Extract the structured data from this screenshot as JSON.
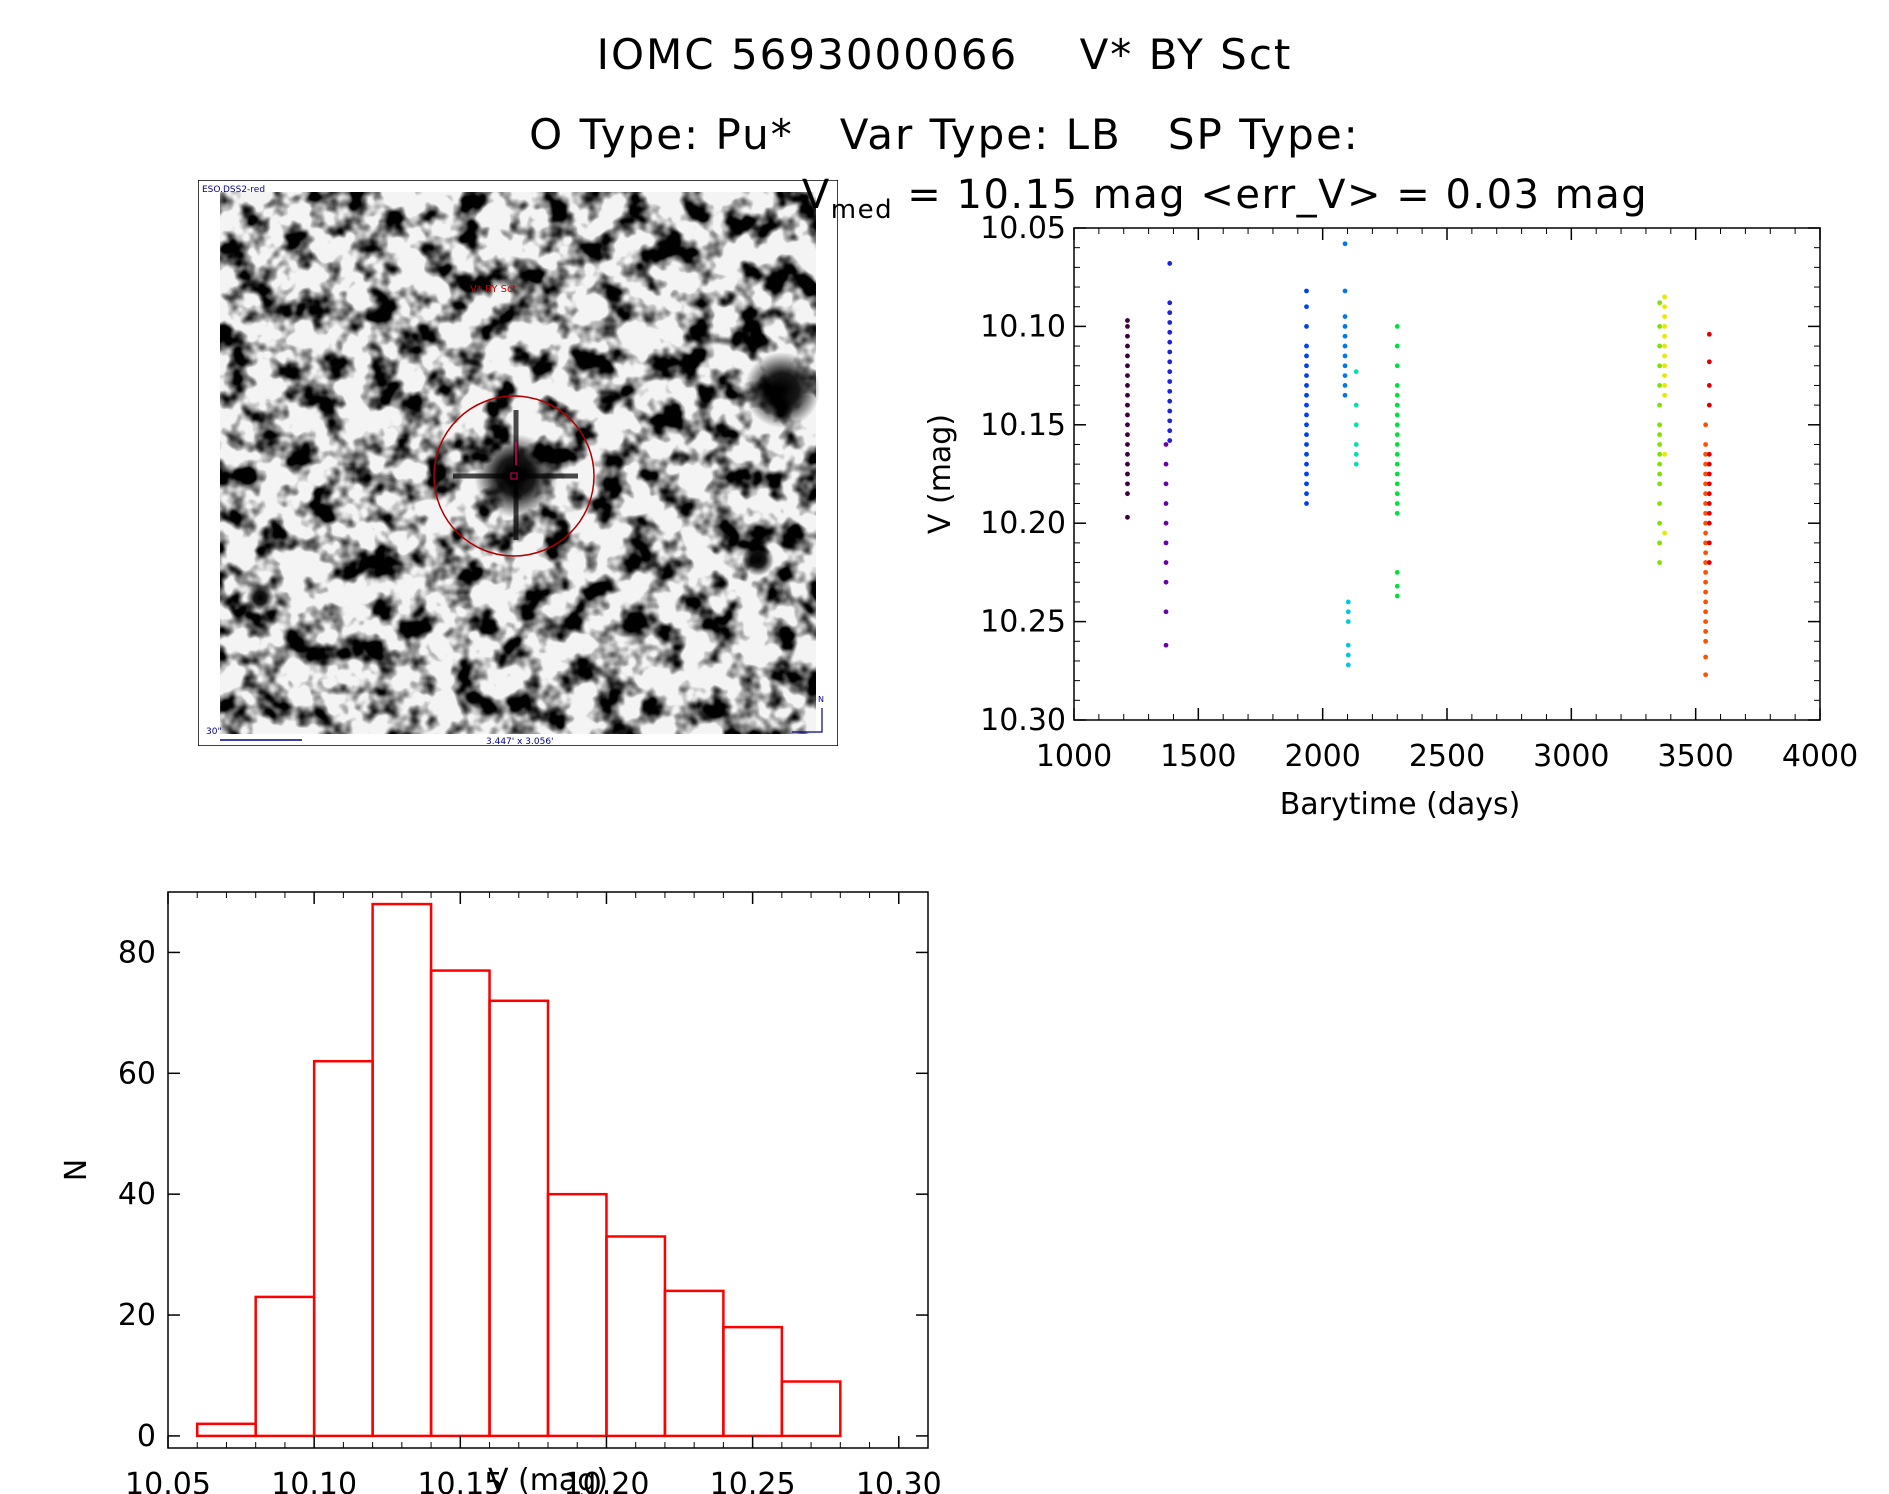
{
  "header": {
    "title_line1": "IOMC 5693000066    V* BY Sct",
    "title_line2": "O Type: Pu*   Var Type: LB   SP Type:"
  },
  "image_panel": {
    "survey_label": "ESO.DSS2-red",
    "target_label": "V* BY Sct",
    "scale_label": "30\"",
    "fov_label": "3.447' x 3.056'",
    "north_label": "N"
  },
  "chart_data": [
    {
      "type": "scatter",
      "title_prefix": "V",
      "title_sub": "med",
      "title_rest": " = 10.15 mag <err_V> = 0.03 mag",
      "xlabel": "Barytime (days)",
      "ylabel": "V (mag)",
      "xlim": [
        1000,
        4000
      ],
      "ylim": [
        10.05,
        10.3
      ],
      "y_inverted": true,
      "xticks": [
        1000,
        1500,
        2000,
        2500,
        3000,
        3500,
        4000
      ],
      "yticks": [
        "10.05",
        "10.10",
        "10.15",
        "10.20",
        "10.25",
        "10.30"
      ],
      "series": [
        {
          "color": "#3a003a",
          "x": [
            1215,
            1215,
            1215,
            1215,
            1215,
            1215,
            1215,
            1215,
            1215,
            1215,
            1215,
            1215,
            1215,
            1215,
            1215,
            1215,
            1215,
            1215,
            1215,
            1215
          ],
          "y": [
            10.097,
            10.1,
            10.105,
            10.11,
            10.115,
            10.12,
            10.125,
            10.13,
            10.135,
            10.14,
            10.145,
            10.15,
            10.155,
            10.16,
            10.165,
            10.17,
            10.175,
            10.18,
            10.185,
            10.197
          ]
        },
        {
          "color": "#6a00a8",
          "x": [
            1370,
            1370,
            1370,
            1370,
            1370,
            1370,
            1370,
            1370,
            1370,
            1370
          ],
          "y": [
            10.16,
            10.17,
            10.18,
            10.19,
            10.2,
            10.21,
            10.22,
            10.23,
            10.245,
            10.262
          ]
        },
        {
          "color": "#2020e0",
          "x": [
            1385,
            1385,
            1385,
            1385,
            1385,
            1385,
            1385,
            1385,
            1385,
            1385,
            1385,
            1385,
            1385,
            1385,
            1385,
            1385
          ],
          "y": [
            10.068,
            10.088,
            10.093,
            10.098,
            10.103,
            10.108,
            10.113,
            10.118,
            10.123,
            10.128,
            10.133,
            10.138,
            10.143,
            10.148,
            10.153,
            10.158
          ]
        },
        {
          "color": "#0040f0",
          "x": [
            1935,
            1935,
            1935,
            1935,
            1935,
            1935,
            1935,
            1935,
            1935,
            1935,
            1935,
            1935,
            1935,
            1935,
            1935,
            1935,
            1935,
            1935,
            1935,
            1935
          ],
          "y": [
            10.082,
            10.09,
            10.1,
            10.11,
            10.115,
            10.12,
            10.125,
            10.13,
            10.135,
            10.14,
            10.145,
            10.15,
            10.155,
            10.16,
            10.165,
            10.17,
            10.175,
            10.18,
            10.185,
            10.19
          ]
        },
        {
          "color": "#0078e8",
          "x": [
            2090,
            2090,
            2090,
            2090,
            2090,
            2090,
            2090,
            2090,
            2090,
            2090,
            2090
          ],
          "y": [
            10.058,
            10.082,
            10.095,
            10.1,
            10.105,
            10.11,
            10.115,
            10.12,
            10.125,
            10.13,
            10.135
          ]
        },
        {
          "color": "#00c8e0",
          "x": [
            2103,
            2103,
            2103,
            2103,
            2103,
            2103
          ],
          "y": [
            10.24,
            10.245,
            10.25,
            10.262,
            10.267,
            10.272
          ]
        },
        {
          "color": "#00e0b0",
          "x": [
            2135,
            2135,
            2135,
            2135,
            2135,
            2135
          ],
          "y": [
            10.123,
            10.14,
            10.15,
            10.16,
            10.165,
            10.17
          ]
        },
        {
          "color": "#00e040",
          "x": [
            2300,
            2300,
            2300,
            2300,
            2300,
            2300,
            2300,
            2300,
            2300,
            2300,
            2300,
            2300,
            2300,
            2300,
            2300,
            2300,
            2300,
            2300,
            2300,
            2300
          ],
          "y": [
            10.1,
            10.11,
            10.12,
            10.13,
            10.135,
            10.14,
            10.145,
            10.15,
            10.155,
            10.16,
            10.165,
            10.17,
            10.175,
            10.18,
            10.185,
            10.19,
            10.195,
            10.225,
            10.232,
            10.237
          ]
        },
        {
          "color": "#80e000",
          "x": [
            3355,
            3355,
            3355,
            3355,
            3355,
            3355,
            3355,
            3355,
            3355,
            3355,
            3355,
            3355,
            3355,
            3355,
            3355,
            3355,
            3355
          ],
          "y": [
            10.088,
            10.1,
            10.11,
            10.12,
            10.13,
            10.14,
            10.15,
            10.155,
            10.16,
            10.165,
            10.17,
            10.175,
            10.18,
            10.19,
            10.2,
            10.21,
            10.22
          ]
        },
        {
          "color": "#e8e800",
          "x": [
            3375,
            3375,
            3375,
            3375,
            3375,
            3375,
            3375,
            3375,
            3375,
            3375,
            3375,
            3375,
            3375
          ],
          "y": [
            10.085,
            10.09,
            10.095,
            10.1,
            10.105,
            10.11,
            10.115,
            10.12,
            10.125,
            10.13,
            10.135,
            10.165,
            10.205
          ]
        },
        {
          "color": "#ff5000",
          "x": [
            3540,
            3540,
            3540,
            3540,
            3540,
            3540,
            3540,
            3540,
            3540,
            3540,
            3540,
            3540,
            3540,
            3540,
            3540,
            3540,
            3540,
            3540,
            3540,
            3540,
            3540,
            3540,
            3540,
            3540
          ],
          "y": [
            10.15,
            10.16,
            10.165,
            10.17,
            10.175,
            10.18,
            10.185,
            10.19,
            10.195,
            10.2,
            10.205,
            10.21,
            10.215,
            10.22,
            10.225,
            10.23,
            10.235,
            10.24,
            10.245,
            10.25,
            10.255,
            10.26,
            10.268,
            10.277
          ]
        },
        {
          "color": "#e00000",
          "x": [
            3555,
            3555,
            3555,
            3555,
            3555,
            3555,
            3555,
            3555,
            3555,
            3555,
            3555,
            3555,
            3555,
            3555
          ],
          "y": [
            10.104,
            10.118,
            10.13,
            10.14,
            10.165,
            10.17,
            10.175,
            10.18,
            10.185,
            10.19,
            10.195,
            10.2,
            10.21,
            10.22
          ]
        }
      ]
    },
    {
      "type": "bar",
      "xlabel": "V (mag)",
      "ylabel": "N",
      "xlim": [
        10.05,
        10.31
      ],
      "ylim": [
        -2,
        90
      ],
      "xticks": [
        "10.05",
        "10.10",
        "10.15",
        "10.20",
        "10.25",
        "10.30"
      ],
      "yticks": [
        0,
        20,
        40,
        60,
        80
      ],
      "bar_color": "#ff0000",
      "bin_edges": [
        10.06,
        10.08,
        10.1,
        10.12,
        10.14,
        10.16,
        10.18,
        10.2,
        10.22,
        10.24,
        10.26,
        10.28
      ],
      "values": [
        2,
        23,
        62,
        88,
        77,
        72,
        40,
        33,
        24,
        18,
        9
      ]
    }
  ]
}
